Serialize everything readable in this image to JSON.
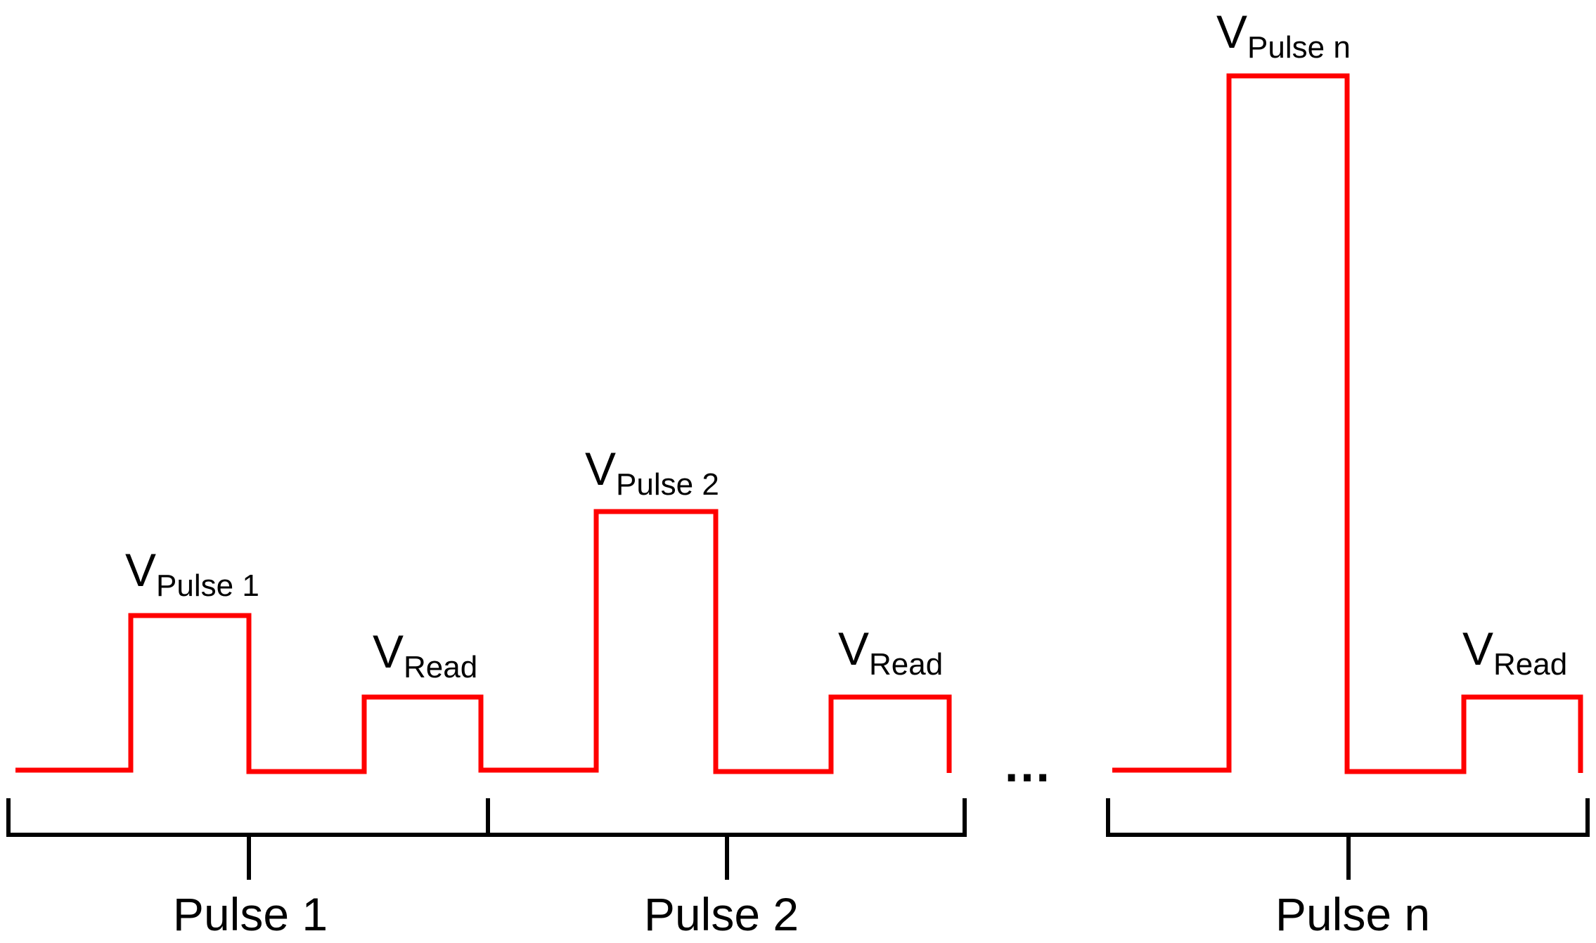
{
  "colors": {
    "waveform": "#ff0000",
    "bracket": "#000000",
    "text": "#000000",
    "background": "#ffffff"
  },
  "waveform_labels": [
    {
      "main": "V",
      "sub": "Pulse 1"
    },
    {
      "main": "V",
      "sub": "Read"
    },
    {
      "main": "V",
      "sub": "Pulse 2"
    },
    {
      "main": "V",
      "sub": "Read"
    },
    {
      "main": "V",
      "sub": "Pulse n"
    },
    {
      "main": "V",
      "sub": "Read"
    }
  ],
  "groups": [
    {
      "label": "Pulse 1"
    },
    {
      "label": "Pulse 2"
    },
    {
      "label": "Pulse n"
    }
  ],
  "ellipsis": "…"
}
